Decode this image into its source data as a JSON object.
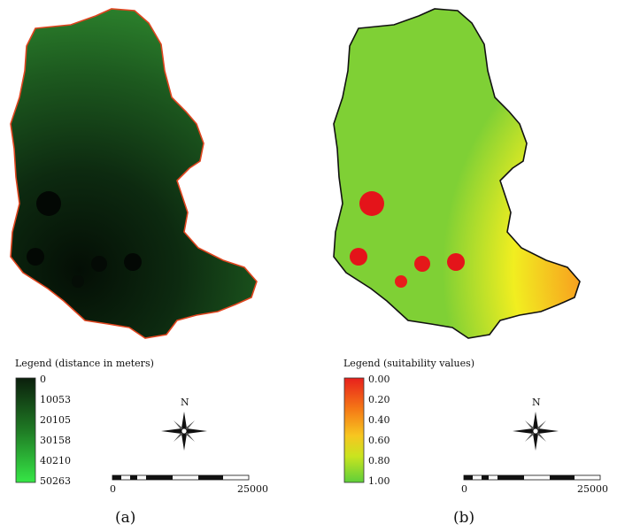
{
  "panels": [
    {
      "id": "a",
      "caption": "(a)",
      "legend_title": "Legend (distance in meters)",
      "ticks": [
        "0",
        "10053",
        "20105",
        "30158",
        "40210",
        "50263"
      ],
      "ramp": {
        "top": "#0b1f0c",
        "bottom": "#36e646"
      },
      "boundary_color": "#e0451f",
      "north": "N",
      "scale": {
        "start": "0",
        "end": "25000"
      }
    },
    {
      "id": "b",
      "caption": "(b)",
      "legend_title": "Legend (suitability values)",
      "ticks": [
        "0.00",
        "0.20",
        "0.40",
        "0.60",
        "0.80",
        "1.00"
      ],
      "ramp": {
        "stops": [
          "#e8201c",
          "#f57a16",
          "#f7c620",
          "#c9e41f",
          "#5fcf3a"
        ]
      },
      "boundary_color": "#111111",
      "north": "N",
      "scale": {
        "start": "0",
        "end": "25000"
      }
    }
  ]
}
